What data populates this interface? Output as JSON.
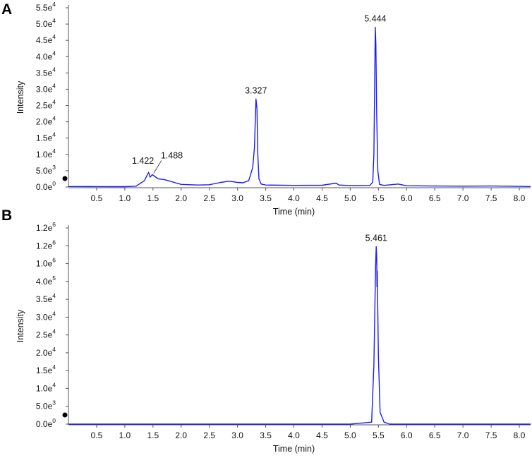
{
  "chart_data": [
    {
      "panel": "A",
      "type": "line",
      "xlabel": "Time (min)",
      "ylabel": "Intensity",
      "xlim": [
        0,
        8.2
      ],
      "ylim": [
        0,
        55000
      ],
      "x_ticks": [
        {
          "value": 0.5,
          "label": "0.5"
        },
        {
          "value": 1.0,
          "label": "1.0"
        },
        {
          "value": 1.5,
          "label": "1.5"
        },
        {
          "value": 2.0,
          "label": "2.0"
        },
        {
          "value": 2.5,
          "label": "2.5"
        },
        {
          "value": 3.0,
          "label": "3.0"
        },
        {
          "value": 3.5,
          "label": "3.5"
        },
        {
          "value": 4.0,
          "label": "4.0"
        },
        {
          "value": 4.5,
          "label": "4.5"
        },
        {
          "value": 5.0,
          "label": "5.0"
        },
        {
          "value": 5.5,
          "label": "5.5"
        },
        {
          "value": 6.0,
          "label": "6.0"
        },
        {
          "value": 6.5,
          "label": "6.5"
        },
        {
          "value": 7.0,
          "label": "7.0"
        },
        {
          "value": 7.5,
          "label": "7.5"
        },
        {
          "value": 8.0,
          "label": "8.0"
        }
      ],
      "y_ticks": [
        {
          "value": 0,
          "mantissa": "0.0e",
          "exp": "0"
        },
        {
          "value": 5000,
          "mantissa": "5.0e",
          "exp": "3"
        },
        {
          "value": 10000,
          "mantissa": "1.0e",
          "exp": "4"
        },
        {
          "value": 15000,
          "mantissa": "1.5e",
          "exp": "4"
        },
        {
          "value": 20000,
          "mantissa": "2.0e",
          "exp": "4"
        },
        {
          "value": 25000,
          "mantissa": "2.5e",
          "exp": "4"
        },
        {
          "value": 30000,
          "mantissa": "3.0e",
          "exp": "4"
        },
        {
          "value": 35000,
          "mantissa": "3.5e",
          "exp": "4"
        },
        {
          "value": 40000,
          "mantissa": "4.0e",
          "exp": "4"
        },
        {
          "value": 45000,
          "mantissa": "4.5e",
          "exp": "4"
        },
        {
          "value": 50000,
          "mantissa": "5.0e",
          "exp": "4"
        },
        {
          "value": 55000,
          "mantissa": "5.5e",
          "exp": "4"
        }
      ],
      "series": [
        {
          "color": "#1a1aff",
          "points": [
            [
              0.0,
              150
            ],
            [
              0.5,
              120
            ],
            [
              1.0,
              100
            ],
            [
              1.2,
              250
            ],
            [
              1.35,
              2000
            ],
            [
              1.422,
              4500
            ],
            [
              1.45,
              3000
            ],
            [
              1.488,
              3800
            ],
            [
              1.55,
              3000
            ],
            [
              1.6,
              2500
            ],
            [
              1.7,
              2300
            ],
            [
              1.8,
              1800
            ],
            [
              1.9,
              1300
            ],
            [
              2.0,
              800
            ],
            [
              2.3,
              600
            ],
            [
              2.5,
              700
            ],
            [
              2.7,
              1400
            ],
            [
              2.85,
              1800
            ],
            [
              3.0,
              1400
            ],
            [
              3.1,
              1300
            ],
            [
              3.2,
              2000
            ],
            [
              3.27,
              6000
            ],
            [
              3.3,
              12000
            ],
            [
              3.327,
              27000
            ],
            [
              3.345,
              24000
            ],
            [
              3.36,
              10000
            ],
            [
              3.38,
              2500
            ],
            [
              3.42,
              900
            ],
            [
              3.5,
              600
            ],
            [
              4.0,
              500
            ],
            [
              4.5,
              550
            ],
            [
              4.75,
              1200
            ],
            [
              4.8,
              600
            ],
            [
              5.0,
              450
            ],
            [
              5.35,
              500
            ],
            [
              5.4,
              1500
            ],
            [
              5.42,
              10000
            ],
            [
              5.444,
              49000
            ],
            [
              5.455,
              44000
            ],
            [
              5.47,
              22000
            ],
            [
              5.49,
              5000
            ],
            [
              5.52,
              800
            ],
            [
              5.6,
              500
            ],
            [
              5.85,
              900
            ],
            [
              6.0,
              400
            ],
            [
              6.5,
              300
            ],
            [
              7.0,
              250
            ],
            [
              7.5,
              300
            ],
            [
              8.0,
              200
            ],
            [
              8.2,
              150
            ]
          ]
        }
      ],
      "annotations": [
        {
          "x": 1.422,
          "y": 4500,
          "label": "1.422"
        },
        {
          "x": 1.488,
          "y": 3800,
          "label": "1.488"
        },
        {
          "x": 3.327,
          "y": 27000,
          "label": "3.327"
        },
        {
          "x": 5.444,
          "y": 49000,
          "label": "5.444"
        }
      ]
    },
    {
      "panel": "B",
      "type": "line",
      "xlabel": "Time (min)",
      "ylabel": "Intensity",
      "xlim": [
        0,
        8.2
      ],
      "y_scale": "broken",
      "x_ticks": [
        {
          "value": 0.5,
          "label": "0.5"
        },
        {
          "value": 1.0,
          "label": "1.0"
        },
        {
          "value": 1.5,
          "label": "1.5"
        },
        {
          "value": 2.0,
          "label": "2.0"
        },
        {
          "value": 2.5,
          "label": "2.5"
        },
        {
          "value": 3.0,
          "label": "3.0"
        },
        {
          "value": 3.5,
          "label": "3.5"
        },
        {
          "value": 4.0,
          "label": "4.0"
        },
        {
          "value": 4.5,
          "label": "4.5"
        },
        {
          "value": 5.0,
          "label": "5.0"
        },
        {
          "value": 5.5,
          "label": "5.5"
        },
        {
          "value": 6.0,
          "label": "6.0"
        },
        {
          "value": 6.5,
          "label": "6.5"
        },
        {
          "value": 7.0,
          "label": "7.0"
        },
        {
          "value": 7.5,
          "label": "7.5"
        },
        {
          "value": 8.0,
          "label": "8.0"
        }
      ],
      "y_ticks": [
        {
          "mantissa": "0.0e",
          "exp": "0"
        },
        {
          "mantissa": "5.0e",
          "exp": "3"
        },
        {
          "mantissa": "1.0e",
          "exp": "4"
        },
        {
          "mantissa": "1.5e",
          "exp": "4"
        },
        {
          "mantissa": "2.0e",
          "exp": "4"
        },
        {
          "mantissa": "2.5e",
          "exp": "4"
        },
        {
          "mantissa": "3.0e",
          "exp": "4"
        },
        {
          "mantissa": "3.5e",
          "exp": "4"
        },
        {
          "mantissa": "4.0e",
          "exp": "5"
        },
        {
          "mantissa": "1.0e",
          "exp": "6"
        },
        {
          "mantissa": "1.2e",
          "exp": "6"
        },
        {
          "mantissa": "1.2e",
          "exp": "6"
        }
      ],
      "series": [
        {
          "color": "#1a1aff",
          "points": [
            [
              0.0,
              0.0
            ],
            [
              5.0,
              0.0
            ],
            [
              5.38,
              0.01
            ],
            [
              5.42,
              0.3
            ],
            [
              5.45,
              0.8
            ],
            [
              5.461,
              0.905
            ],
            [
              5.47,
              0.85
            ],
            [
              5.475,
              0.7
            ],
            [
              5.48,
              0.78
            ],
            [
              5.5,
              0.35
            ],
            [
              5.53,
              0.06
            ],
            [
              5.6,
              0.01
            ],
            [
              5.7,
              0.0
            ],
            [
              8.2,
              0.0
            ]
          ]
        }
      ],
      "annotations": [
        {
          "x": 5.461,
          "y": 0.905,
          "label": "5.461"
        }
      ]
    }
  ]
}
